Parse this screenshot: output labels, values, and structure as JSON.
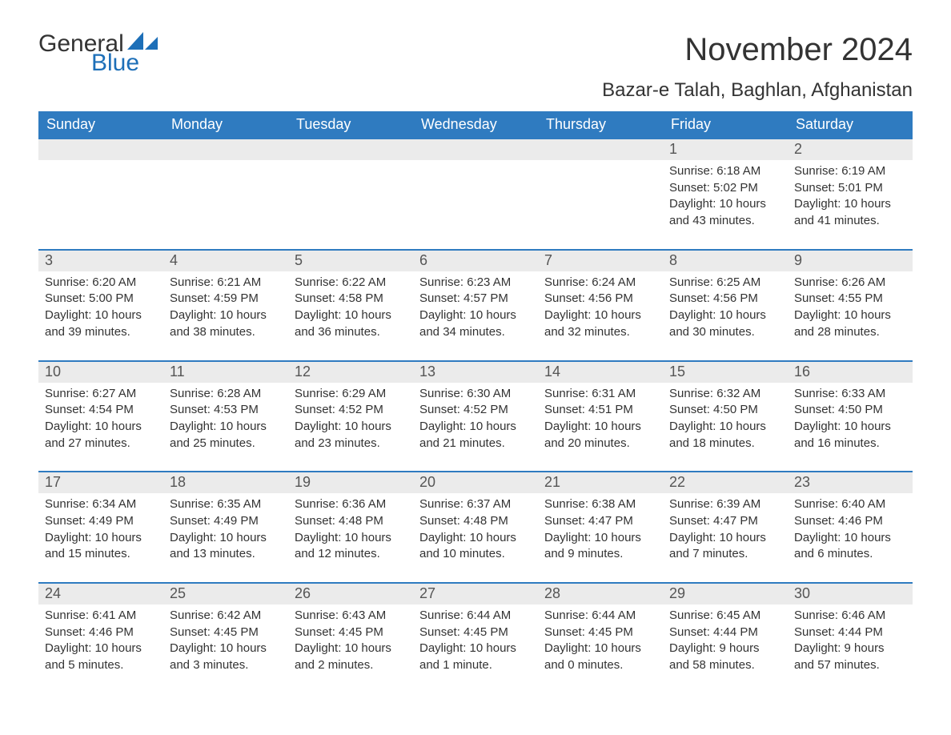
{
  "colors": {
    "header_bg": "#2f7bc0",
    "header_text": "#ffffff",
    "daynum_bg": "#ebebeb",
    "daynum_text": "#555555",
    "body_text": "#333333",
    "rule": "#2f7bc0",
    "logo_blue": "#1d6fb8",
    "page_bg": "#ffffff"
  },
  "typography": {
    "title_fontsize": 40,
    "location_fontsize": 24,
    "weekday_fontsize": 18,
    "daynum_fontsize": 18,
    "body_fontsize": 15,
    "logo_fontsize": 30
  },
  "logo": {
    "general": "General",
    "blue": "Blue"
  },
  "title": "November 2024",
  "location": "Bazar-e Talah, Baghlan, Afghanistan",
  "weekdays": [
    "Sunday",
    "Monday",
    "Tuesday",
    "Wednesday",
    "Thursday",
    "Friday",
    "Saturday"
  ],
  "labels": {
    "sunrise": "Sunrise:",
    "sunset": "Sunset:",
    "daylight": "Daylight:"
  },
  "weeks": [
    [
      {
        "empty": true
      },
      {
        "empty": true
      },
      {
        "empty": true
      },
      {
        "empty": true
      },
      {
        "empty": true
      },
      {
        "day": "1",
        "sunrise": "6:18 AM",
        "sunset": "5:02 PM",
        "daylight": "10 hours and 43 minutes."
      },
      {
        "day": "2",
        "sunrise": "6:19 AM",
        "sunset": "5:01 PM",
        "daylight": "10 hours and 41 minutes."
      }
    ],
    [
      {
        "day": "3",
        "sunrise": "6:20 AM",
        "sunset": "5:00 PM",
        "daylight": "10 hours and 39 minutes."
      },
      {
        "day": "4",
        "sunrise": "6:21 AM",
        "sunset": "4:59 PM",
        "daylight": "10 hours and 38 minutes."
      },
      {
        "day": "5",
        "sunrise": "6:22 AM",
        "sunset": "4:58 PM",
        "daylight": "10 hours and 36 minutes."
      },
      {
        "day": "6",
        "sunrise": "6:23 AM",
        "sunset": "4:57 PM",
        "daylight": "10 hours and 34 minutes."
      },
      {
        "day": "7",
        "sunrise": "6:24 AM",
        "sunset": "4:56 PM",
        "daylight": "10 hours and 32 minutes."
      },
      {
        "day": "8",
        "sunrise": "6:25 AM",
        "sunset": "4:56 PM",
        "daylight": "10 hours and 30 minutes."
      },
      {
        "day": "9",
        "sunrise": "6:26 AM",
        "sunset": "4:55 PM",
        "daylight": "10 hours and 28 minutes."
      }
    ],
    [
      {
        "day": "10",
        "sunrise": "6:27 AM",
        "sunset": "4:54 PM",
        "daylight": "10 hours and 27 minutes."
      },
      {
        "day": "11",
        "sunrise": "6:28 AM",
        "sunset": "4:53 PM",
        "daylight": "10 hours and 25 minutes."
      },
      {
        "day": "12",
        "sunrise": "6:29 AM",
        "sunset": "4:52 PM",
        "daylight": "10 hours and 23 minutes."
      },
      {
        "day": "13",
        "sunrise": "6:30 AM",
        "sunset": "4:52 PM",
        "daylight": "10 hours and 21 minutes."
      },
      {
        "day": "14",
        "sunrise": "6:31 AM",
        "sunset": "4:51 PM",
        "daylight": "10 hours and 20 minutes."
      },
      {
        "day": "15",
        "sunrise": "6:32 AM",
        "sunset": "4:50 PM",
        "daylight": "10 hours and 18 minutes."
      },
      {
        "day": "16",
        "sunrise": "6:33 AM",
        "sunset": "4:50 PM",
        "daylight": "10 hours and 16 minutes."
      }
    ],
    [
      {
        "day": "17",
        "sunrise": "6:34 AM",
        "sunset": "4:49 PM",
        "daylight": "10 hours and 15 minutes."
      },
      {
        "day": "18",
        "sunrise": "6:35 AM",
        "sunset": "4:49 PM",
        "daylight": "10 hours and 13 minutes."
      },
      {
        "day": "19",
        "sunrise": "6:36 AM",
        "sunset": "4:48 PM",
        "daylight": "10 hours and 12 minutes."
      },
      {
        "day": "20",
        "sunrise": "6:37 AM",
        "sunset": "4:48 PM",
        "daylight": "10 hours and 10 minutes."
      },
      {
        "day": "21",
        "sunrise": "6:38 AM",
        "sunset": "4:47 PM",
        "daylight": "10 hours and 9 minutes."
      },
      {
        "day": "22",
        "sunrise": "6:39 AM",
        "sunset": "4:47 PM",
        "daylight": "10 hours and 7 minutes."
      },
      {
        "day": "23",
        "sunrise": "6:40 AM",
        "sunset": "4:46 PM",
        "daylight": "10 hours and 6 minutes."
      }
    ],
    [
      {
        "day": "24",
        "sunrise": "6:41 AM",
        "sunset": "4:46 PM",
        "daylight": "10 hours and 5 minutes."
      },
      {
        "day": "25",
        "sunrise": "6:42 AM",
        "sunset": "4:45 PM",
        "daylight": "10 hours and 3 minutes."
      },
      {
        "day": "26",
        "sunrise": "6:43 AM",
        "sunset": "4:45 PM",
        "daylight": "10 hours and 2 minutes."
      },
      {
        "day": "27",
        "sunrise": "6:44 AM",
        "sunset": "4:45 PM",
        "daylight": "10 hours and 1 minute."
      },
      {
        "day": "28",
        "sunrise": "6:44 AM",
        "sunset": "4:45 PM",
        "daylight": "10 hours and 0 minutes."
      },
      {
        "day": "29",
        "sunrise": "6:45 AM",
        "sunset": "4:44 PM",
        "daylight": "9 hours and 58 minutes."
      },
      {
        "day": "30",
        "sunrise": "6:46 AM",
        "sunset": "4:44 PM",
        "daylight": "9 hours and 57 minutes."
      }
    ]
  ]
}
